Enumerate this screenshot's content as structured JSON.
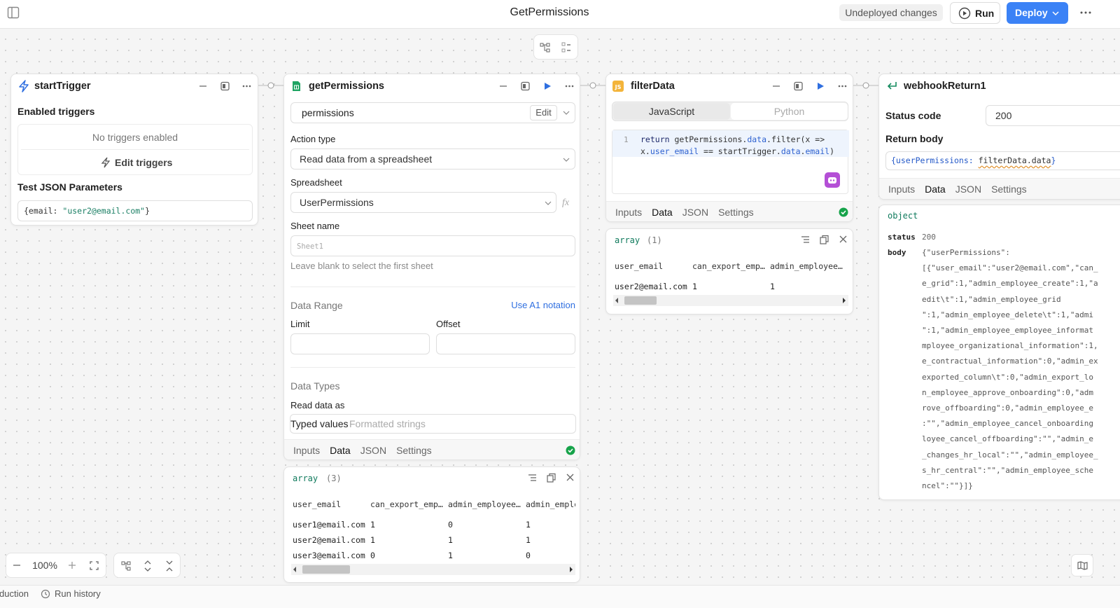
{
  "header": {
    "title": "GetPermissions",
    "status": "Undeployed changes",
    "run": "Run",
    "deploy": "Deploy"
  },
  "start_trigger": {
    "title": "startTrigger",
    "enabled_label": "Enabled triggers",
    "no_triggers": "No triggers enabled",
    "edit_triggers": "Edit triggers",
    "test_label": "Test JSON Parameters",
    "test_json": [
      {
        "text": "{email: ",
        "color": "#333333"
      },
      {
        "text": "\"user2@email.com\"",
        "color": "#1a7f64"
      },
      {
        "text": "}",
        "color": "#333333"
      }
    ]
  },
  "get_permissions": {
    "title": "getPermissions",
    "resource": "permissions",
    "edit": "Edit",
    "action_label": "Action type",
    "action": "Read data from a spreadsheet",
    "spreadsheet_label": "Spreadsheet",
    "spreadsheet": "UserPermissions",
    "fx": "fx",
    "sheet_label": "Sheet name",
    "sheet_placeholder": "Sheet1",
    "sheet_hint": "Leave blank to select the first sheet",
    "range_label": "Data Range",
    "a1": "Use A1 notation",
    "limit": "Limit",
    "offset": "Offset",
    "types_label": "Data Types",
    "read_as": "Read data as",
    "typed": "Typed values",
    "formatted": "Formatted strings",
    "tabs": [
      "Inputs",
      "Data",
      "JSON",
      "Settings"
    ],
    "result": {
      "type": "array",
      "count": "(3)",
      "columns": [
        "user_email",
        "can_export_emp…",
        "admin_employee…",
        "admin_emplo"
      ],
      "rows": [
        [
          "user1@email.com",
          1,
          0,
          1
        ],
        [
          "user2@email.com",
          1,
          1,
          1
        ],
        [
          "user3@email.com",
          0,
          1,
          0
        ]
      ]
    }
  },
  "filter_data": {
    "title": "filterData",
    "languages": [
      "JavaScript",
      "Python"
    ],
    "line_number": 1,
    "code": [
      [
        {
          "text": "return",
          "color": "#1f2a6b"
        },
        {
          "text": " getPermissions.",
          "color": "#333333"
        },
        {
          "text": "data",
          "color": "#2f62d0"
        },
        {
          "text": ".filter(x =>",
          "color": "#333333"
        }
      ],
      [
        {
          "text": "x.",
          "color": "#333333"
        },
        {
          "text": "user_email",
          "color": "#2f62d0"
        },
        {
          "text": " == startTrigger.",
          "color": "#333333"
        },
        {
          "text": "data",
          "color": "#2f62d0"
        },
        {
          "text": ".",
          "color": "#333333"
        },
        {
          "text": "email",
          "color": "#2f62d0"
        },
        {
          "text": ")",
          "color": "#333333"
        }
      ]
    ],
    "tabs": [
      "Inputs",
      "Data",
      "JSON",
      "Settings"
    ],
    "result": {
      "type": "array",
      "count": "(1)",
      "columns": [
        "user_email",
        "can_export_emp…",
        "admin_employee…"
      ],
      "rows": [
        [
          "user2@email.com",
          1,
          1
        ]
      ]
    }
  },
  "webhook": {
    "title": "webhookReturn1",
    "status_label": "Status code",
    "status_value": 200,
    "body_label": "Return body",
    "body_expr": [
      {
        "text": "{userPermissions: ",
        "color": "#2459c8"
      },
      {
        "text": "filterData.data",
        "color": "#333333"
      },
      {
        "text": "}",
        "color": "#2459c8"
      }
    ],
    "tabs": [
      "Inputs",
      "Data",
      "JSON",
      "Settings"
    ],
    "result": {
      "type": "object",
      "status_key": "status",
      "status_value": 200,
      "body_key": "body",
      "body_lines": [
        "{\"userPermissions\":",
        "[{\"user_email\":\"user2@email.com\",\"can_",
        "e_grid\":1,\"admin_employee_create\":1,\"a",
        "edit\\t\":1,\"admin_employee_grid",
        "\":1,\"admin_employee_delete\\t\":1,\"admi",
        "\":1,\"admin_employee_employee_informat",
        "mployee_organizational_information\":1,",
        "e_contractual_information\":0,\"admin_ex",
        "exported_column\\t\":0,\"admin_export_lo",
        "n_employee_approve_onboarding\":0,\"adm",
        "rove_offboarding\":0,\"admin_employee_e",
        ":\"\",\"admin_employee_cancel_onboarding",
        "loyee_cancel_offboarding\":\"\",\"admin_e",
        "_changes_hr_local\":\"\",\"admin_employee_",
        "s_hr_central\":\"\",\"admin_employee_sche",
        "ncel\":\"\"}]}"
      ]
    }
  },
  "canvas": {
    "zoom": "100%"
  },
  "footer": {
    "tab": "duction",
    "history": "Run history"
  }
}
